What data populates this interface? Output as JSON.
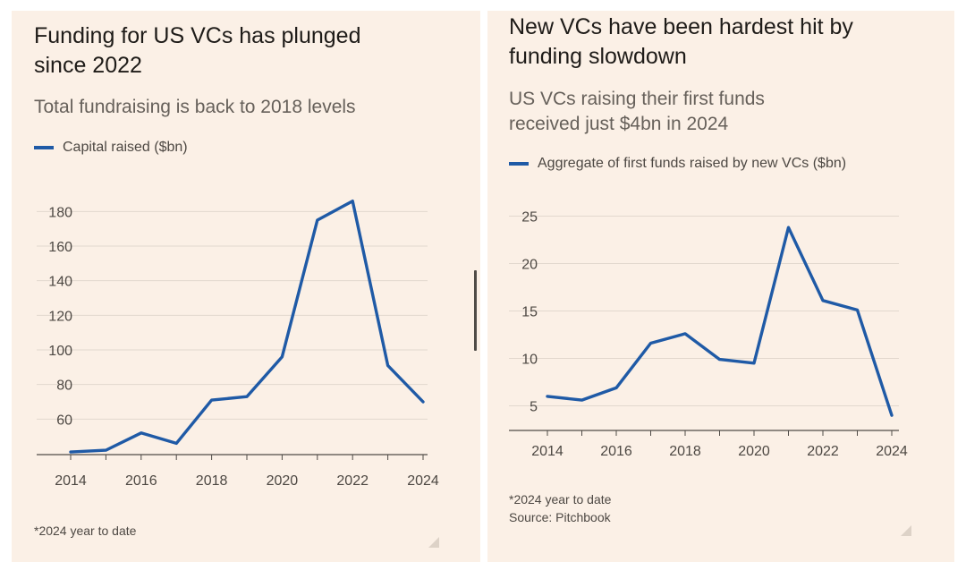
{
  "left_panel": {
    "title_lines": [
      "Funding for US VCs has plunged",
      "since 2022"
    ],
    "subtitle": "Total fundraising is back to 2018 levels",
    "note": "*2024 year to date"
  },
  "right_panel": {
    "title_lines": [
      "New VCs have been hardest hit by",
      "funding slowdown"
    ],
    "subtitle_lines": [
      "US VCs raising their first funds",
      "received just $4bn in 2024"
    ],
    "note_lines": [
      "*2024 year to date",
      "Source: Pitchbook"
    ]
  },
  "colors": {
    "background": "#fbf0e6",
    "line": "#1f5aa6",
    "grid": "#e2d8ce",
    "axis": "#4f4b47",
    "text": "#4d4843"
  },
  "chart_data": [
    {
      "type": "line",
      "title": "Funding for US VCs has plunged since 2022",
      "subtitle": "Total fundraising is back to 2018 levels",
      "xlabel": "",
      "ylabel": "",
      "x": [
        2014,
        2015,
        2016,
        2017,
        2018,
        2019,
        2020,
        2021,
        2022,
        2023,
        2024
      ],
      "series": [
        {
          "name": "Capital raised ($bn)",
          "values": [
            41,
            42,
            52,
            46,
            71,
            73,
            96,
            175,
            186,
            91,
            70
          ]
        }
      ],
      "x_ticks": [
        "2014",
        "2016",
        "2018",
        "2020",
        "2022",
        "2024"
      ],
      "y_ticks": [
        60,
        80,
        100,
        120,
        140,
        160,
        180
      ],
      "xlim": [
        2014,
        2024
      ],
      "ylim": [
        40,
        190
      ],
      "grid": true,
      "legend": "top-left"
    },
    {
      "type": "line",
      "title": "New VCs have been hardest hit by funding slowdown",
      "subtitle": "US VCs raising their first funds received just $4bn in 2024",
      "xlabel": "",
      "ylabel": "",
      "x": [
        2014,
        2015,
        2016,
        2017,
        2018,
        2019,
        2020,
        2021,
        2022,
        2023,
        2024
      ],
      "series": [
        {
          "name": "Aggregate of first funds raised by new VCs ($bn)",
          "values": [
            6.0,
            5.6,
            6.9,
            11.6,
            12.6,
            9.9,
            9.5,
            23.8,
            16.1,
            15.1,
            4.0
          ]
        }
      ],
      "x_ticks": [
        "2014",
        "2016",
        "2018",
        "2020",
        "2022",
        "2024"
      ],
      "y_ticks": [
        5,
        10,
        15,
        20,
        25
      ],
      "xlim": [
        2014,
        2024
      ],
      "ylim": [
        2.5,
        27.5
      ],
      "grid": true,
      "legend": "top-left"
    }
  ]
}
